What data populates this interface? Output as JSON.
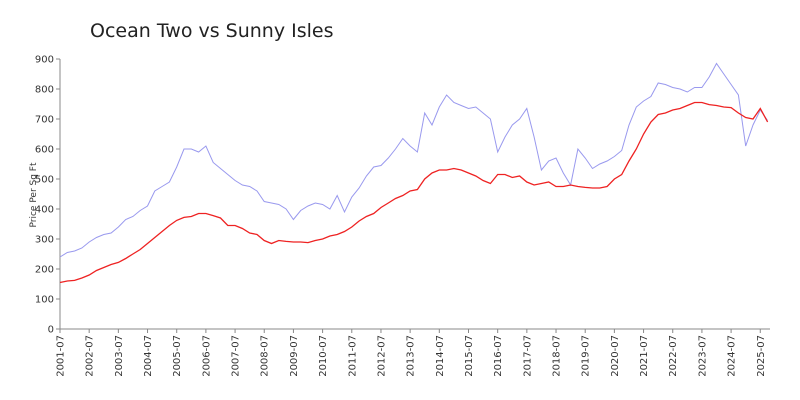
{
  "chart_data": {
    "type": "line",
    "title": "Ocean Two vs Sunny Isles",
    "y_label": "Price Per Sq Ft",
    "x": [
      "2001-07",
      "2001-10",
      "2002-01",
      "2002-04",
      "2002-07",
      "2002-10",
      "2003-01",
      "2003-04",
      "2003-07",
      "2003-10",
      "2004-01",
      "2004-04",
      "2004-07",
      "2004-10",
      "2005-01",
      "2005-04",
      "2005-07",
      "2005-10",
      "2006-01",
      "2006-04",
      "2006-07",
      "2006-10",
      "2007-01",
      "2007-04",
      "2007-07",
      "2007-10",
      "2008-01",
      "2008-04",
      "2008-07",
      "2008-10",
      "2009-01",
      "2009-04",
      "2009-07",
      "2009-10",
      "2010-01",
      "2010-04",
      "2010-07",
      "2010-10",
      "2011-01",
      "2011-04",
      "2011-07",
      "2011-10",
      "2012-01",
      "2012-04",
      "2012-07",
      "2012-10",
      "2013-01",
      "2013-04",
      "2013-07",
      "2013-10",
      "2014-01",
      "2014-04",
      "2014-07",
      "2014-10",
      "2015-01",
      "2015-04",
      "2015-07",
      "2015-10",
      "2016-01",
      "2016-04",
      "2016-07",
      "2016-10",
      "2017-01",
      "2017-04",
      "2017-07",
      "2017-10",
      "2018-01",
      "2018-04",
      "2018-07",
      "2018-10",
      "2019-01",
      "2019-04",
      "2019-07",
      "2019-10",
      "2020-01",
      "2020-04",
      "2020-07",
      "2020-10",
      "2021-01",
      "2021-04",
      "2021-07",
      "2021-10",
      "2022-01",
      "2022-04",
      "2022-07",
      "2022-10",
      "2023-01",
      "2023-04",
      "2023-07",
      "2023-10",
      "2024-01",
      "2024-04",
      "2024-07",
      "2024-10",
      "2025-01",
      "2025-04",
      "2025-07",
      "2025-10"
    ],
    "series": [
      {
        "color": "#9999ee",
        "values": [
          240,
          255,
          260,
          270,
          290,
          305,
          315,
          320,
          340,
          365,
          375,
          395,
          410,
          460,
          475,
          490,
          540,
          600,
          600,
          590,
          610,
          555,
          535,
          515,
          495,
          480,
          475,
          460,
          425,
          420,
          415,
          400,
          365,
          395,
          410,
          420,
          415,
          400,
          445,
          390,
          440,
          470,
          510,
          540,
          545,
          570,
          600,
          635,
          610,
          590,
          720,
          680,
          740,
          780,
          755,
          745,
          735,
          740,
          720,
          700,
          590,
          640,
          680,
          700,
          735,
          640,
          530,
          560,
          570,
          520,
          480,
          600,
          570,
          535,
          550,
          560,
          575,
          595,
          680,
          740,
          760,
          775,
          820,
          815,
          805,
          800,
          790,
          805,
          805,
          840,
          885,
          850,
          815,
          780,
          610,
          680,
          730,
          695
        ]
      },
      {
        "color": "#ee2222",
        "values": [
          155,
          160,
          162,
          170,
          180,
          195,
          205,
          215,
          222,
          235,
          250,
          265,
          285,
          305,
          325,
          345,
          362,
          372,
          375,
          385,
          385,
          378,
          370,
          345,
          345,
          335,
          320,
          315,
          295,
          285,
          295,
          292,
          290,
          290,
          288,
          295,
          300,
          310,
          315,
          325,
          340,
          360,
          375,
          385,
          405,
          420,
          435,
          445,
          460,
          465,
          500,
          520,
          530,
          530,
          535,
          530,
          520,
          510,
          495,
          485,
          515,
          515,
          505,
          510,
          490,
          480,
          485,
          490,
          475,
          475,
          480,
          475,
          472,
          470,
          470,
          475,
          500,
          515,
          560,
          600,
          650,
          690,
          715,
          720,
          730,
          735,
          745,
          755,
          755,
          748,
          745,
          740,
          738,
          720,
          705,
          700,
          735,
          690
        ]
      }
    ],
    "xlim": [
      "2001-07",
      "2025-11"
    ],
    "xticks": [
      "2001-07",
      "2002-07",
      "2003-07",
      "2004-07",
      "2005-07",
      "2006-07",
      "2007-07",
      "2008-07",
      "2009-07",
      "2010-07",
      "2011-07",
      "2012-07",
      "2013-07",
      "2014-07",
      "2015-07",
      "2016-07",
      "2017-07",
      "2018-07",
      "2019-07",
      "2020-07",
      "2021-07",
      "2022-07",
      "2023-07",
      "2024-07",
      "2025-07"
    ],
    "ylim": [
      0,
      900
    ],
    "yticks": [
      0,
      100,
      200,
      300,
      400,
      500,
      600,
      700,
      800,
      900
    ],
    "grid": false
  }
}
